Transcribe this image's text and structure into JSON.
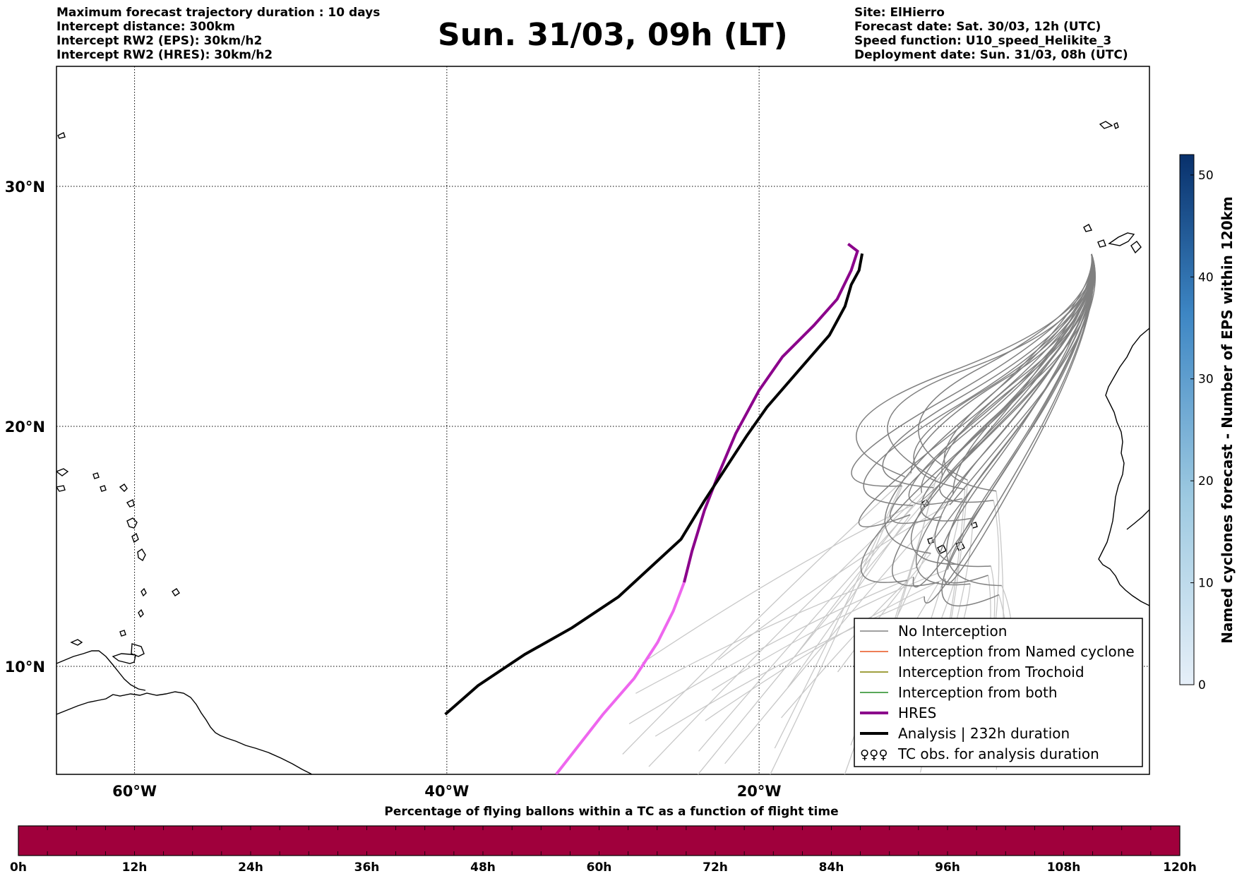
{
  "header": {
    "left_lines": [
      "Maximum forecast trajectory duration : 10 days",
      "Intercept distance: 300km",
      "Intercept RW2 (EPS):  30km/h2",
      "Intercept RW2 (HRES): 30km/h2"
    ],
    "title": "Sun. 31/03, 09h (LT)",
    "right_lines": [
      "Site: ElHierro",
      "Forecast date: Sat. 30/03, 12h (UTC)",
      "Speed function: U10_speed_Helikite_3",
      "Deployment date: Sun. 31/03, 08h (UTC)"
    ]
  },
  "map": {
    "lon_range": [
      -65,
      5
    ],
    "lat_range": [
      5.5,
      35
    ],
    "lon_ticks": [
      {
        "value": -60,
        "label": "60°W"
      },
      {
        "value": -40,
        "label": "40°W"
      },
      {
        "value": -20,
        "label": "20°W"
      }
    ],
    "lat_ticks": [
      {
        "value": 30,
        "label": "30°N"
      },
      {
        "value": 20,
        "label": "20°N"
      },
      {
        "value": 10,
        "label": "10°N"
      }
    ],
    "analysis_track": [
      [
        -40.1,
        8.0
      ],
      [
        -38,
        9.2
      ],
      [
        -35,
        10.5
      ],
      [
        -32,
        11.6
      ],
      [
        -29,
        12.9
      ],
      [
        -27,
        14.1
      ],
      [
        -25,
        15.3
      ],
      [
        -23.5,
        16.9
      ],
      [
        -22,
        18.4
      ],
      [
        -20.8,
        19.6
      ],
      [
        -19.5,
        20.8
      ],
      [
        -17.5,
        22.3
      ],
      [
        -15.5,
        23.8
      ],
      [
        -14.5,
        25.0
      ],
      [
        -14.1,
        25.9
      ],
      [
        -13.6,
        26.5
      ],
      [
        -13.4,
        27.2
      ]
    ],
    "hres_track": [
      [
        -33,
        5.5
      ],
      [
        -30,
        8.0
      ],
      [
        -28,
        9.5
      ],
      [
        -26.5,
        11
      ],
      [
        -25.5,
        12.3
      ],
      [
        -24.8,
        13.5
      ],
      [
        -24.3,
        14.8
      ],
      [
        -23.5,
        16.5
      ],
      [
        -22.6,
        18.0
      ],
      [
        -21.5,
        19.7
      ],
      [
        -20,
        21.5
      ],
      [
        -18.5,
        22.9
      ],
      [
        -16.5,
        24.2
      ],
      [
        -15,
        25.3
      ],
      [
        -14.1,
        26.5
      ],
      [
        -13.7,
        27.3
      ],
      [
        -14.3,
        27.6
      ]
    ],
    "colors": {
      "no_interception": "#808080",
      "named_cyclone": "#e8531e",
      "trochoid": "#808000",
      "both": "#228b22",
      "hres": "#8b008b",
      "hres_late": "#ee66ee",
      "analysis": "#000000",
      "faded": "#c8c8c8"
    }
  },
  "legend": {
    "items": [
      {
        "label": "No Interception",
        "kind": "thin",
        "color": "#808080"
      },
      {
        "label": "Interception from Named cyclone",
        "kind": "thin",
        "color": "#e8531e"
      },
      {
        "label": "Interception from Trochoid",
        "kind": "thin",
        "color": "#808000"
      },
      {
        "label": "Interception from both",
        "kind": "thin",
        "color": "#228b22"
      },
      {
        "label": "HRES",
        "kind": "thick",
        "color": "#8b008b"
      },
      {
        "label": "Analysis | 232h duration",
        "kind": "thick",
        "color": "#000000"
      },
      {
        "label": "TC obs. for analysis duration",
        "kind": "symbol",
        "color": "#000000"
      }
    ]
  },
  "right_colorbar": {
    "label": "Named cyclones forecast - Number of EPS within 120km",
    "ticks": [
      "0",
      "10",
      "20",
      "30",
      "40",
      "50"
    ],
    "range": [
      0,
      52
    ],
    "color_low": "#e6eff8",
    "color_high": "#08306b"
  },
  "bottom_colorbar": {
    "title": "Percentage of flying ballons within a TC as a function of flight time",
    "ticks": [
      "0h",
      "12h",
      "24h",
      "36h",
      "48h",
      "60h",
      "72h",
      "84h",
      "96h",
      "108h",
      "120h"
    ],
    "fill_color": "#a0003c"
  }
}
